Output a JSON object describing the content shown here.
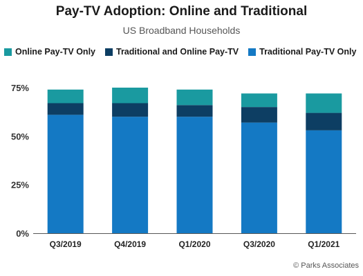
{
  "chart_data": {
    "type": "bar",
    "stacked": true,
    "title": "Pay-TV Adoption: Online and Traditional",
    "subtitle": "US Broadband Households",
    "categories": [
      "Q3/2019",
      "Q4/2019",
      "Q1/2020",
      "Q3/2020",
      "Q1/2021"
    ],
    "series": [
      {
        "name": "Traditional Pay-TV Only",
        "color": "#1479c4",
        "values": [
          61,
          60,
          60,
          57,
          53
        ]
      },
      {
        "name": "Traditional and Online Pay-TV",
        "color": "#0d3e63",
        "values": [
          6,
          7,
          6,
          8,
          9
        ]
      },
      {
        "name": "Online Pay-TV Only",
        "color": "#1a9aa0",
        "values": [
          7,
          8,
          8,
          7,
          10
        ]
      }
    ],
    "legend_order": [
      "Online Pay-TV Only",
      "Traditional and Online Pay-TV",
      "Traditional Pay-TV Only"
    ],
    "yticks": [
      "0%",
      "25%",
      "50%",
      "75%"
    ],
    "ytick_values": [
      0,
      25,
      50,
      75
    ],
    "ylim": [
      0,
      75
    ],
    "legend_position": "top",
    "grid": false
  },
  "footer": {
    "copyright": "© Parks Associates"
  }
}
